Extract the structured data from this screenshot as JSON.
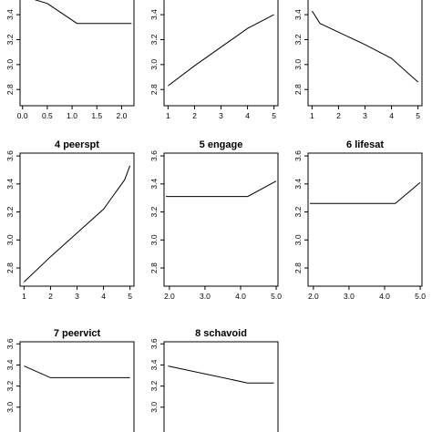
{
  "chart_data": [
    {
      "type": "line",
      "title": "",
      "x": [
        0.0,
        0.5,
        1.1,
        2.2
      ],
      "y": [
        3.55,
        3.49,
        3.33,
        3.33
      ],
      "xlim": [
        -0.05,
        2.25
      ],
      "ylim": [
        2.67,
        3.62
      ],
      "xticks": [
        0.0,
        0.5,
        1.0,
        1.5,
        2.0
      ],
      "xtick_labels": [
        "0.0",
        "0.5",
        "1.0",
        "1.5",
        "2.0"
      ],
      "yticks": [
        2.8,
        3.0,
        3.2,
        3.4
      ],
      "ytick_labels": [
        "2.8",
        "3.0",
        "3.2",
        "3.4"
      ]
    },
    {
      "type": "line",
      "title": "",
      "x": [
        1,
        2,
        3,
        4,
        5
      ],
      "y": [
        2.83,
        2.99,
        3.14,
        3.29,
        3.4
      ],
      "xlim": [
        0.85,
        5.15
      ],
      "ylim": [
        2.67,
        3.62
      ],
      "xticks": [
        1,
        2,
        3,
        4,
        5
      ],
      "xtick_labels": [
        "1",
        "2",
        "3",
        "4",
        "5"
      ],
      "yticks": [
        2.8,
        3.0,
        3.2,
        3.4
      ],
      "ytick_labels": [
        "2.8",
        "3.0",
        "3.2",
        "3.4"
      ]
    },
    {
      "type": "line",
      "title": "",
      "x": [
        1,
        1.3,
        2,
        3,
        4,
        5
      ],
      "y": [
        3.43,
        3.33,
        3.26,
        3.16,
        3.05,
        2.86
      ],
      "xlim": [
        0.85,
        5.15
      ],
      "ylim": [
        2.67,
        3.62
      ],
      "xticks": [
        1,
        2,
        3,
        4,
        5
      ],
      "xtick_labels": [
        "1",
        "2",
        "3",
        "4",
        "5"
      ],
      "yticks": [
        2.8,
        3.0,
        3.2,
        3.4
      ],
      "ytick_labels": [
        "2.8",
        "3.0",
        "3.2",
        "3.4"
      ]
    },
    {
      "type": "line",
      "title": "4  peerspt",
      "x": [
        1,
        2,
        3,
        4,
        4.8,
        5
      ],
      "y": [
        2.7,
        2.88,
        3.05,
        3.22,
        3.43,
        3.53
      ],
      "xlim": [
        0.85,
        5.15
      ],
      "ylim": [
        2.67,
        3.62
      ],
      "xticks": [
        1,
        2,
        3,
        4,
        5
      ],
      "xtick_labels": [
        "1",
        "2",
        "3",
        "4",
        "5"
      ],
      "yticks": [
        2.8,
        3.0,
        3.2,
        3.4,
        3.6
      ],
      "ytick_labels": [
        "2.8",
        "3.0",
        "3.2",
        "3.4",
        "3.6"
      ]
    },
    {
      "type": "line",
      "title": "5  engage",
      "x": [
        1.9,
        4.2,
        5.0
      ],
      "y": [
        3.31,
        3.31,
        3.42
      ],
      "xlim": [
        1.85,
        5.05
      ],
      "ylim": [
        2.67,
        3.62
      ],
      "xticks": [
        2.0,
        3.0,
        4.0,
        5.0
      ],
      "xtick_labels": [
        "2.0",
        "3.0",
        "4.0",
        "5.0"
      ],
      "yticks": [
        2.8,
        3.0,
        3.2,
        3.4,
        3.6
      ],
      "ytick_labels": [
        "2.8",
        "3.0",
        "3.2",
        "3.4",
        "3.6"
      ]
    },
    {
      "type": "line",
      "title": "6  lifesat",
      "x": [
        1.9,
        4.3,
        5.0
      ],
      "y": [
        3.26,
        3.26,
        3.41
      ],
      "xlim": [
        1.85,
        5.05
      ],
      "ylim": [
        2.67,
        3.62
      ],
      "xticks": [
        2.0,
        3.0,
        4.0,
        5.0
      ],
      "xtick_labels": [
        "2.0",
        "3.0",
        "4.0",
        "5.0"
      ],
      "yticks": [
        2.8,
        3.0,
        3.2,
        3.4,
        3.6
      ],
      "ytick_labels": [
        "2.8",
        "3.0",
        "3.2",
        "3.4",
        "3.6"
      ]
    },
    {
      "type": "line",
      "title": "7  peervict",
      "x": [
        1.0,
        2.0,
        5.0
      ],
      "y": [
        3.39,
        3.28,
        3.28
      ],
      "xlim": [
        0.85,
        5.15
      ],
      "ylim": [
        2.67,
        3.62
      ],
      "xticks": [],
      "xtick_labels": [],
      "yticks": [
        3.0,
        3.2,
        3.4,
        3.6
      ],
      "ytick_labels": [
        "3.0",
        "3.2",
        "3.4",
        "3.6"
      ]
    },
    {
      "type": "line",
      "title": "8  schavoid",
      "x": [
        1.0,
        4.0,
        5.0
      ],
      "y": [
        3.39,
        3.23,
        3.23
      ],
      "xlim": [
        0.85,
        5.15
      ],
      "ylim": [
        2.67,
        3.62
      ],
      "xticks": [],
      "xtick_labels": [],
      "yticks": [
        3.0,
        3.2,
        3.4,
        3.6
      ],
      "ytick_labels": [
        "3.0",
        "3.2",
        "3.4",
        "3.6"
      ]
    }
  ]
}
